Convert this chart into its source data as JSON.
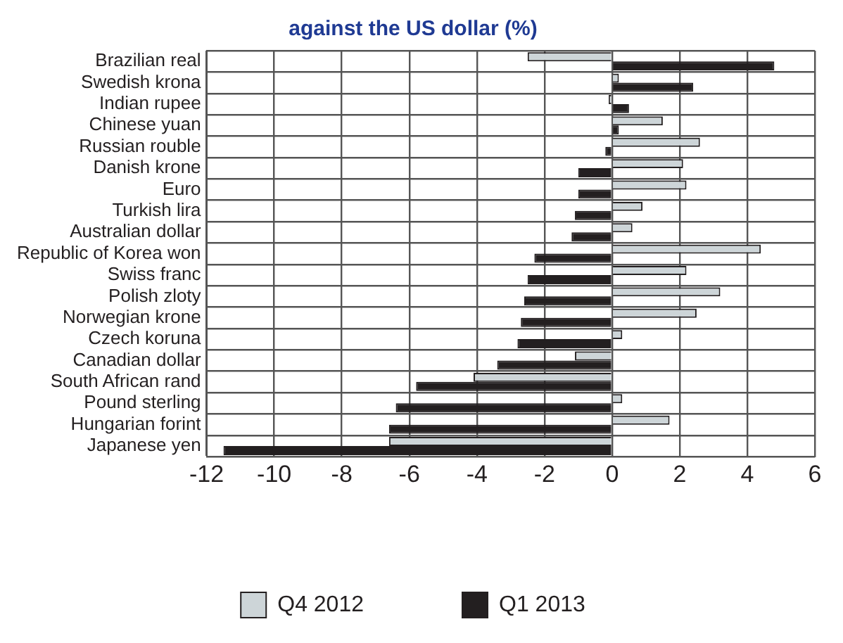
{
  "chart_data": {
    "type": "bar",
    "orientation": "horizontal",
    "title": "against the US dollar (%)",
    "categories": [
      "Brazilian real",
      "Swedish krona",
      "Indian rupee",
      "Chinese yuan",
      "Russian rouble",
      "Danish krone",
      "Euro",
      "Turkish lira",
      "Australian dollar",
      "Republic of Korea won",
      "Swiss franc",
      "Polish zloty",
      "Norwegian krone",
      "Czech koruna",
      "Canadian dollar",
      "South African rand",
      "Pound sterling",
      "Hungarian forint",
      "Japanese yen"
    ],
    "series": [
      {
        "name": "Q4 2012",
        "color": "#cdd5d8",
        "values": [
          -2.5,
          0.2,
          -0.1,
          1.5,
          2.6,
          2.1,
          2.2,
          0.9,
          0.6,
          4.4,
          2.2,
          3.2,
          2.5,
          0.3,
          -1.1,
          -4.1,
          0.3,
          1.7,
          -6.6
        ]
      },
      {
        "name": "Q1 2013",
        "color": "#231f20",
        "values": [
          4.8,
          2.4,
          0.5,
          0.2,
          -0.2,
          -1.0,
          -1.0,
          -1.1,
          -1.2,
          -2.3,
          -2.5,
          -2.6,
          -2.7,
          -2.8,
          -3.4,
          -5.8,
          -6.4,
          -6.6,
          -11.5
        ]
      }
    ],
    "xlim": [
      -12,
      6
    ],
    "xticks": [
      -12,
      -10,
      -8,
      -6,
      -4,
      -2,
      0,
      2,
      4,
      6
    ],
    "grid": true,
    "legend": "bottom"
  }
}
